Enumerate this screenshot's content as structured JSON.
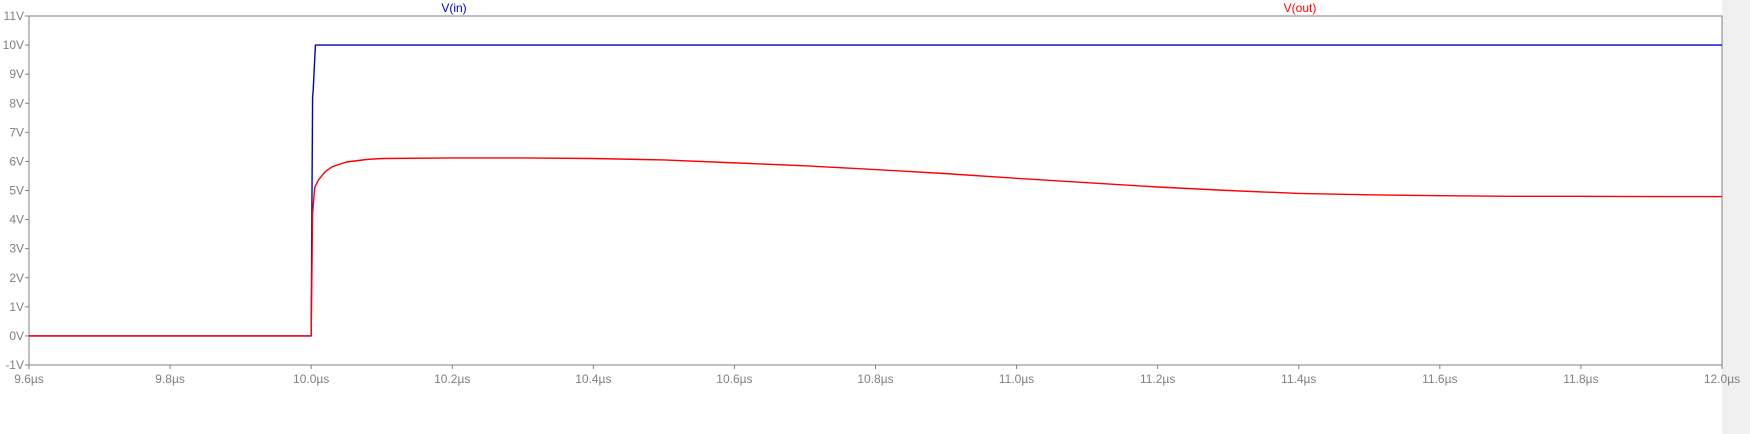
{
  "chart_data": {
    "type": "line",
    "xlim": [
      9.6,
      12.0
    ],
    "ylim": [
      -1,
      11
    ],
    "grid": false,
    "x_ticks": [
      {
        "value": 9.6,
        "label": "9.6µs"
      },
      {
        "value": 9.8,
        "label": "9.8µs"
      },
      {
        "value": 10.0,
        "label": "10.0µs"
      },
      {
        "value": 10.2,
        "label": "10.2µs"
      },
      {
        "value": 10.4,
        "label": "10.4µs"
      },
      {
        "value": 10.6,
        "label": "10.6µs"
      },
      {
        "value": 10.8,
        "label": "10.8µs"
      },
      {
        "value": 11.0,
        "label": "11.0µs"
      },
      {
        "value": 11.2,
        "label": "11.2µs"
      },
      {
        "value": 11.4,
        "label": "11.4µs"
      },
      {
        "value": 11.6,
        "label": "11.6µs"
      },
      {
        "value": 11.8,
        "label": "11.8µs"
      },
      {
        "value": 12.0,
        "label": "12.0µs"
      }
    ],
    "y_ticks": [
      {
        "value": 11,
        "label": "11V"
      },
      {
        "value": 10,
        "label": "10V"
      },
      {
        "value": 9,
        "label": "9V"
      },
      {
        "value": 8,
        "label": "8V"
      },
      {
        "value": 7,
        "label": "7V"
      },
      {
        "value": 6,
        "label": "6V"
      },
      {
        "value": 5,
        "label": "5V"
      },
      {
        "value": 4,
        "label": "4V"
      },
      {
        "value": 3,
        "label": "3V"
      },
      {
        "value": 2,
        "label": "2V"
      },
      {
        "value": 1,
        "label": "1V"
      },
      {
        "value": 0,
        "label": "0V"
      },
      {
        "value": -1,
        "label": "-1V"
      }
    ],
    "series": [
      {
        "name": "V(in)",
        "color": "#0000cc",
        "x": [
          9.6,
          10.0,
          10.001,
          10.002,
          10.003,
          10.006,
          10.2,
          10.4,
          10.6,
          10.8,
          11.0,
          11.2,
          11.4,
          11.6,
          11.8,
          12.0
        ],
        "y": [
          0,
          0,
          4.2,
          8.2,
          8.5,
          10.0,
          10.0,
          10.0,
          10.0,
          10.0,
          10.0,
          10.0,
          10.0,
          10.0,
          10.0,
          10.0
        ]
      },
      {
        "name": "V(out)",
        "color": "#ff0000",
        "x": [
          9.6,
          10.0,
          10.002,
          10.005,
          10.01,
          10.02,
          10.03,
          10.05,
          10.08,
          10.1,
          10.2,
          10.3,
          10.4,
          10.5,
          10.6,
          10.7,
          10.8,
          10.9,
          11.0,
          11.1,
          11.2,
          11.3,
          11.4,
          11.5,
          11.6,
          11.7,
          11.8,
          11.9,
          12.0
        ],
        "y": [
          0,
          0,
          4.2,
          5.1,
          5.35,
          5.65,
          5.82,
          5.98,
          6.07,
          6.1,
          6.12,
          6.12,
          6.1,
          6.05,
          5.95,
          5.85,
          5.72,
          5.58,
          5.42,
          5.27,
          5.12,
          5.0,
          4.9,
          4.85,
          4.82,
          4.8,
          4.8,
          4.79,
          4.79
        ]
      }
    ]
  }
}
